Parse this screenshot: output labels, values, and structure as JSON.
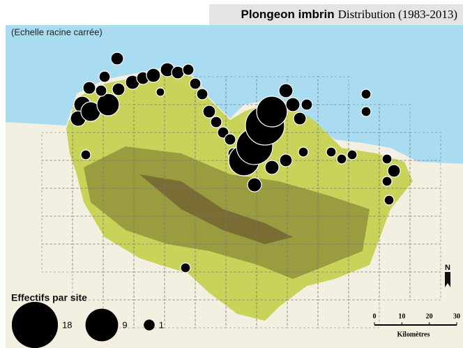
{
  "map": {
    "title_bold": "Plongeon imbrin",
    "title_rest": "Distribution (1983-2013)",
    "scale_note": "(Echelle racine carrée)",
    "legend": {
      "title": "Effectifs par site",
      "sizes": [
        18,
        9,
        1
      ]
    },
    "scale_bar": {
      "ticks": [
        0,
        10,
        20,
        30
      ],
      "unit": "Kilomètres"
    },
    "north": "N"
  }
}
